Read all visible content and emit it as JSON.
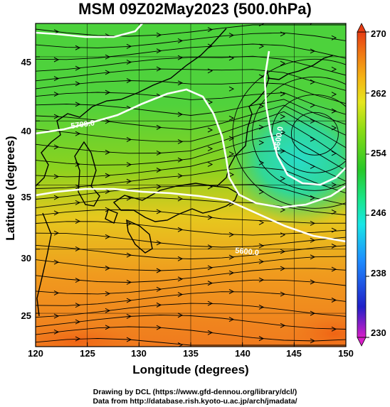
{
  "map": {
    "title": "MSM 09Z02May2023 (500.0hPa)",
    "xlabel": "Longitude (degrees)",
    "ylabel": "Latitude  (degrees)",
    "x_ticks": [
      "120",
      "125",
      "130",
      "135",
      "140",
      "145",
      "150"
    ],
    "y_ticks": [
      "45",
      "40",
      "35",
      "30",
      "25"
    ],
    "extent": {
      "lon": [
        120,
        150
      ],
      "lat": [
        22.4,
        47.6
      ]
    },
    "colorbar": {
      "ticks": [
        "270",
        "262",
        "254",
        "246",
        "238",
        "230"
      ],
      "range": [
        230,
        270
      ],
      "colors": [
        "#d81ec8",
        "#2020c8",
        "#1e8cff",
        "#19e6e6",
        "#19e68c",
        "#28c828",
        "#8cdc14",
        "#e6e61e",
        "#f5b414",
        "#f07814",
        "#e63c14"
      ]
    },
    "contour_labels": [
      "5700.0",
      "5600.0",
      "5600.0"
    ],
    "credit_drawing": "Drawing by DCL (https://www.gfd-dennou.org/library/dcl/)",
    "credit_data": "Data from http://database.rish.kyoto-u.ac.jp/arch/jmadata/"
  }
}
